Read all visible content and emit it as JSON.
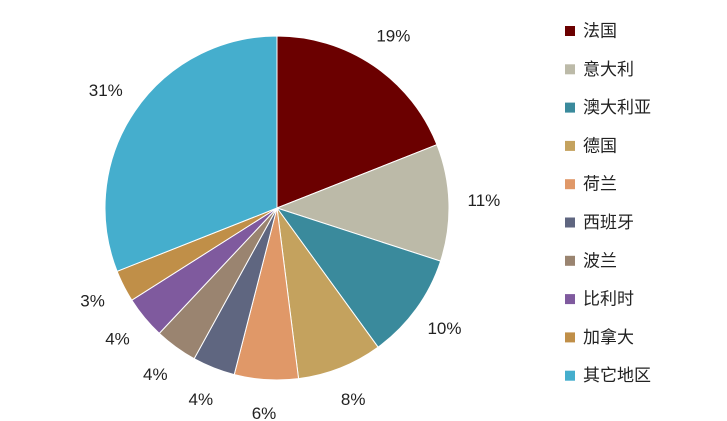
{
  "chart_data": {
    "type": "pie",
    "categories": [
      "法国",
      "意大利",
      "澳大利亚",
      "德国",
      "荷兰",
      "西班牙",
      "波兰",
      "比利时",
      "加拿大",
      "其它地区"
    ],
    "values": [
      19,
      11,
      10,
      8,
      6,
      4,
      4,
      4,
      3,
      31
    ],
    "value_labels": [
      "19%",
      "11%",
      "10%",
      "8%",
      "6%",
      "4%",
      "4%",
      "4%",
      "3%",
      "31%"
    ],
    "colors": [
      "#6b0000",
      "#bcbaa8",
      "#3a8a9c",
      "#c4a25e",
      "#e09868",
      "#5f6680",
      "#9a8470",
      "#7f5a9e",
      "#c08f48",
      "#45aecd"
    ],
    "legend": "right"
  }
}
